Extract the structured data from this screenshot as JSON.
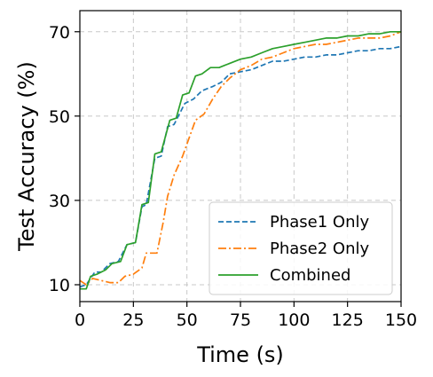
{
  "chart_data": {
    "type": "line",
    "xlabel": "Time (s)",
    "ylabel": "Test Accuracy (%)",
    "xlim": [
      0,
      150
    ],
    "ylim": [
      6,
      75
    ],
    "xticks": [
      0,
      25,
      50,
      75,
      100,
      125,
      150
    ],
    "yticks": [
      10,
      30,
      50,
      70
    ],
    "grid": true,
    "legend_position": "lower-right",
    "series": [
      {
        "name": "Phase1 Only",
        "color": "#1f77b4",
        "dash": "dashed",
        "x": [
          0,
          3,
          7,
          10,
          14,
          18,
          22,
          26,
          29,
          31,
          35,
          38,
          41,
          44,
          49,
          53,
          57,
          62,
          66,
          70,
          75,
          80,
          85,
          90,
          95,
          100,
          105,
          110,
          115,
          120,
          125,
          130,
          135,
          140,
          145,
          150
        ],
        "y": [
          9.5,
          10,
          13,
          13,
          15,
          15.5,
          19.5,
          20,
          28.5,
          29,
          40,
          40.5,
          47.5,
          48,
          53,
          54,
          56,
          57,
          58,
          60,
          60.5,
          61,
          62,
          63,
          63,
          63.5,
          64,
          64,
          64.5,
          64.5,
          65,
          65.5,
          65.5,
          66,
          66,
          66.5
        ]
      },
      {
        "name": "Phase2 Only",
        "color": "#ff7f0e",
        "dash": "dashdot",
        "x": [
          0,
          3,
          6,
          10,
          14,
          18,
          21,
          25,
          29,
          31,
          36,
          39,
          41,
          44,
          48,
          54,
          58,
          62,
          66,
          70,
          75,
          80,
          85,
          90,
          95,
          100,
          105,
          110,
          115,
          120,
          125,
          130,
          135,
          140,
          145,
          150
        ],
        "y": [
          11,
          10,
          11.5,
          11,
          10.5,
          10.5,
          12,
          12.5,
          14,
          17.5,
          17.5,
          25,
          31,
          36,
          40.5,
          49,
          50.5,
          54,
          57,
          59,
          61,
          62,
          63.5,
          64,
          65,
          66,
          66.5,
          67,
          67,
          67.5,
          68,
          68.5,
          68.5,
          68.5,
          69,
          70
        ]
      },
      {
        "name": "Combined",
        "color": "#2ca02c",
        "dash": "solid",
        "x": [
          0,
          3,
          5,
          8,
          12,
          15,
          19,
          22,
          26,
          29,
          32,
          35,
          38,
          42,
          45,
          48,
          51,
          54,
          57,
          61,
          65,
          70,
          75,
          80,
          85,
          90,
          95,
          100,
          105,
          110,
          115,
          120,
          125,
          130,
          135,
          140,
          145,
          150
        ],
        "y": [
          9,
          9,
          12,
          12.5,
          13.5,
          15,
          15.5,
          19.5,
          20,
          29,
          29.5,
          41,
          41.5,
          49,
          49.5,
          55,
          55.5,
          59.5,
          60,
          61.5,
          61.5,
          62.5,
          63.5,
          64,
          65,
          66,
          66.5,
          67,
          67.5,
          68,
          68.5,
          68.5,
          69,
          69,
          69.5,
          69.5,
          70,
          70
        ]
      }
    ]
  }
}
